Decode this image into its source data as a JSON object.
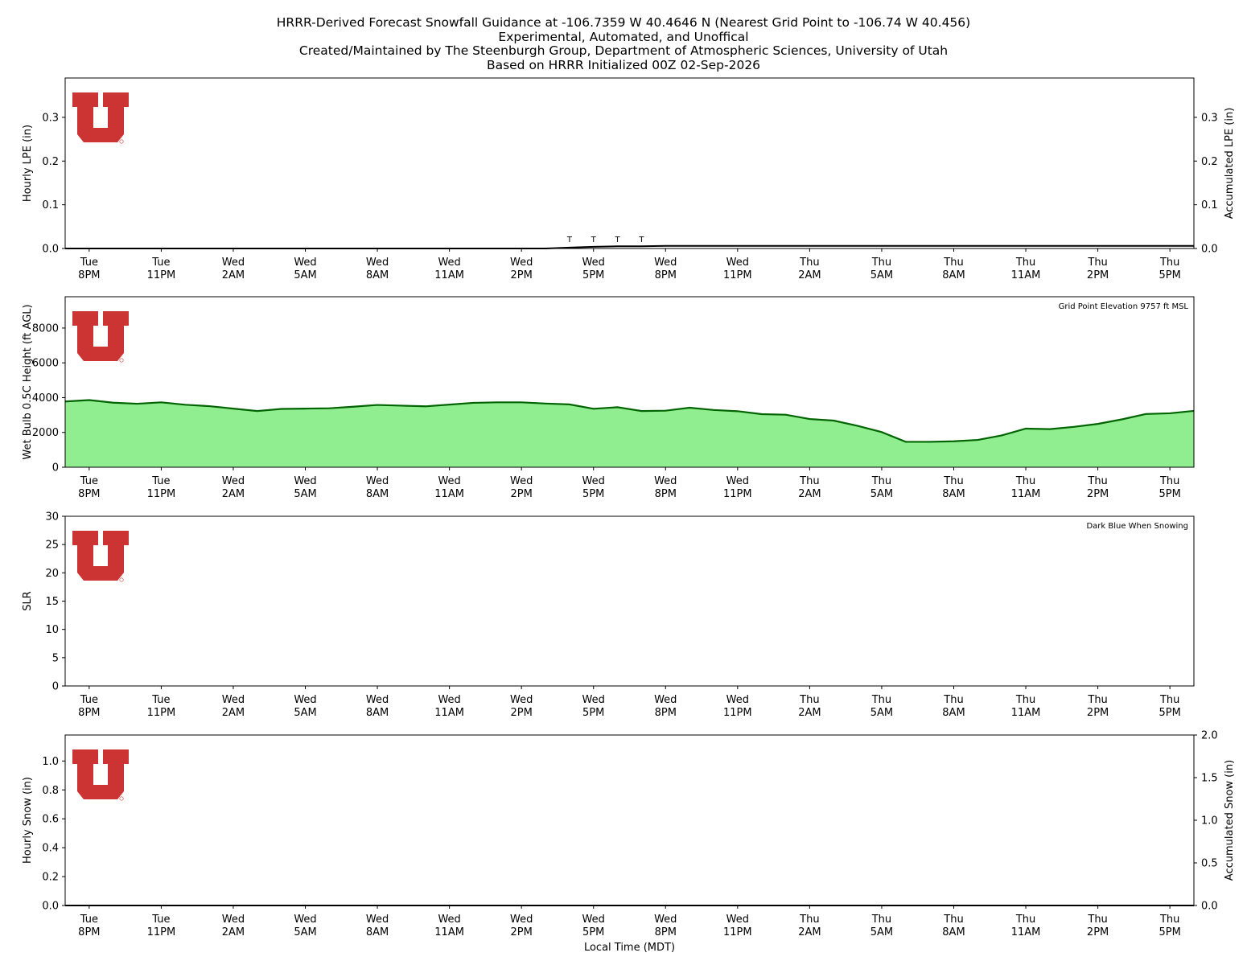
{
  "title_lines": [
    "HRRR-Derived Forecast Snowfall Guidance at -106.7359 W 40.4646 N (Nearest Grid Point to -106.74 W 40.456)",
    "Experimental, Automated, and Unoffical",
    "Created/Maintained by The Steenburgh Group, Department of Atmospheric Sciences, University of Utah",
    "Based on HRRR Initialized 00Z 02-Sep-2026"
  ],
  "colors": {
    "wetbulb_fill": "#90ee90",
    "wetbulb_line": "#006400",
    "logo_red": "#cc3333"
  },
  "logo": {
    "letter": "U"
  },
  "chart_data": [
    {
      "type": "line",
      "panel": "lpe",
      "ylabel": "Hourly LPE (in)",
      "y2label": "Accumulated LPE (in)",
      "ylim": [
        0,
        0.39
      ],
      "y2lim": [
        0,
        0.39
      ],
      "yticks": [
        "0.0",
        "0.1",
        "0.2",
        "0.3"
      ],
      "y2ticks": [
        "0.0",
        "0.1",
        "0.2",
        "0.3"
      ],
      "xlim": [
        -1,
        46
      ],
      "xticks": [
        0,
        3,
        6,
        9,
        12,
        15,
        18,
        21,
        24,
        27,
        30,
        33,
        36,
        39,
        42,
        45
      ],
      "xticklabels": [
        [
          "Tue",
          "8PM"
        ],
        [
          "Tue",
          "11PM"
        ],
        [
          "Wed",
          "2AM"
        ],
        [
          "Wed",
          "5AM"
        ],
        [
          "Wed",
          "8AM"
        ],
        [
          "Wed",
          "11AM"
        ],
        [
          "Wed",
          "2PM"
        ],
        [
          "Wed",
          "5PM"
        ],
        [
          "Wed",
          "8PM"
        ],
        [
          "Wed",
          "11PM"
        ],
        [
          "Thu",
          "2AM"
        ],
        [
          "Thu",
          "5AM"
        ],
        [
          "Thu",
          "8AM"
        ],
        [
          "Thu",
          "11AM"
        ],
        [
          "Thu",
          "2PM"
        ],
        [
          "Thu",
          "5PM"
        ]
      ],
      "series": [
        {
          "role": "accumulated",
          "x": [
            -1,
            19,
            20,
            21,
            22,
            23,
            24,
            46
          ],
          "values": [
            0,
            0,
            0.002,
            0.004,
            0.005,
            0.005,
            0.006,
            0.006
          ]
        }
      ],
      "trace_labels": [
        {
          "x": 20,
          "text": "T"
        },
        {
          "x": 21,
          "text": "T"
        },
        {
          "x": 22,
          "text": "T"
        },
        {
          "x": 23,
          "text": "T"
        }
      ]
    },
    {
      "type": "area",
      "panel": "wetbulb",
      "ylabel": "Wet Bulb 0.5C Height (ft AGL)",
      "annotation": "Grid Point Elevation 9757 ft MSL",
      "ylim": [
        0,
        9800
      ],
      "yticks": [
        0,
        2000,
        4000,
        6000,
        8000
      ],
      "xlim": [
        -1,
        46
      ],
      "xticks": [
        0,
        3,
        6,
        9,
        12,
        15,
        18,
        21,
        24,
        27,
        30,
        33,
        36,
        39,
        42,
        45
      ],
      "xticklabels": [
        [
          "Tue",
          "8PM"
        ],
        [
          "Tue",
          "11PM"
        ],
        [
          "Wed",
          "2AM"
        ],
        [
          "Wed",
          "5AM"
        ],
        [
          "Wed",
          "8AM"
        ],
        [
          "Wed",
          "11AM"
        ],
        [
          "Wed",
          "2PM"
        ],
        [
          "Wed",
          "5PM"
        ],
        [
          "Wed",
          "8PM"
        ],
        [
          "Wed",
          "11PM"
        ],
        [
          "Thu",
          "2AM"
        ],
        [
          "Thu",
          "5AM"
        ],
        [
          "Thu",
          "8AM"
        ],
        [
          "Thu",
          "11AM"
        ],
        [
          "Thu",
          "2PM"
        ],
        [
          "Thu",
          "5PM"
        ]
      ],
      "x": [
        -1,
        0,
        1,
        2,
        3,
        4,
        5,
        6,
        7,
        8,
        9,
        10,
        11,
        12,
        13,
        14,
        15,
        16,
        17,
        18,
        19,
        20,
        21,
        22,
        23,
        24,
        25,
        26,
        27,
        28,
        29,
        30,
        31,
        32,
        33,
        34,
        35,
        36,
        37,
        38,
        39,
        40,
        41,
        42,
        43,
        44,
        45,
        46
      ],
      "values": [
        3780,
        3860,
        3710,
        3650,
        3730,
        3590,
        3510,
        3370,
        3230,
        3350,
        3370,
        3390,
        3480,
        3580,
        3540,
        3500,
        3600,
        3700,
        3730,
        3730,
        3660,
        3610,
        3360,
        3450,
        3230,
        3250,
        3420,
        3290,
        3220,
        3050,
        3020,
        2770,
        2680,
        2380,
        2020,
        1460,
        1460,
        1490,
        1570,
        1830,
        2220,
        2190,
        2320,
        2490,
        2750,
        3060,
        3100,
        3240
      ]
    },
    {
      "type": "line",
      "panel": "slr",
      "ylabel": "SLR",
      "annotation": "Dark Blue When Snowing",
      "ylim": [
        0,
        30
      ],
      "yticks": [
        0,
        5,
        10,
        15,
        20,
        25,
        30
      ],
      "xlim": [
        -1,
        46
      ],
      "xticks": [
        0,
        3,
        6,
        9,
        12,
        15,
        18,
        21,
        24,
        27,
        30,
        33,
        36,
        39,
        42,
        45
      ],
      "xticklabels": [
        [
          "Tue",
          "8PM"
        ],
        [
          "Tue",
          "11PM"
        ],
        [
          "Wed",
          "2AM"
        ],
        [
          "Wed",
          "5AM"
        ],
        [
          "Wed",
          "8AM"
        ],
        [
          "Wed",
          "11AM"
        ],
        [
          "Wed",
          "2PM"
        ],
        [
          "Wed",
          "5PM"
        ],
        [
          "Wed",
          "8PM"
        ],
        [
          "Wed",
          "11PM"
        ],
        [
          "Thu",
          "2AM"
        ],
        [
          "Thu",
          "5AM"
        ],
        [
          "Thu",
          "8AM"
        ],
        [
          "Thu",
          "11AM"
        ],
        [
          "Thu",
          "2PM"
        ],
        [
          "Thu",
          "5PM"
        ]
      ]
    },
    {
      "type": "line",
      "panel": "snow",
      "ylabel": "Hourly Snow (in)",
      "y2label": "Accumulated Snow (in)",
      "xlabel": "Local Time (MDT)",
      "ylim": [
        0,
        1.18
      ],
      "y2lim": [
        0,
        2.0
      ],
      "yticks": [
        "0.0",
        "0.2",
        "0.4",
        "0.6",
        "0.8",
        "1.0"
      ],
      "y2ticks": [
        "0.0",
        "0.5",
        "1.0",
        "1.5",
        "2.0"
      ],
      "xlim": [
        -1,
        46
      ],
      "xticks": [
        0,
        3,
        6,
        9,
        12,
        15,
        18,
        21,
        24,
        27,
        30,
        33,
        36,
        39,
        42,
        45
      ],
      "xticklabels": [
        [
          "Tue",
          "8PM"
        ],
        [
          "Tue",
          "11PM"
        ],
        [
          "Wed",
          "2AM"
        ],
        [
          "Wed",
          "5AM"
        ],
        [
          "Wed",
          "8AM"
        ],
        [
          "Wed",
          "11AM"
        ],
        [
          "Wed",
          "2PM"
        ],
        [
          "Wed",
          "5PM"
        ],
        [
          "Wed",
          "8PM"
        ],
        [
          "Wed",
          "11PM"
        ],
        [
          "Thu",
          "2AM"
        ],
        [
          "Thu",
          "5AM"
        ],
        [
          "Thu",
          "8AM"
        ],
        [
          "Thu",
          "11AM"
        ],
        [
          "Thu",
          "2PM"
        ],
        [
          "Thu",
          "5PM"
        ]
      ],
      "series": [
        {
          "role": "accumulated",
          "x": [
            -1,
            46
          ],
          "values": [
            0,
            0
          ]
        }
      ]
    }
  ]
}
